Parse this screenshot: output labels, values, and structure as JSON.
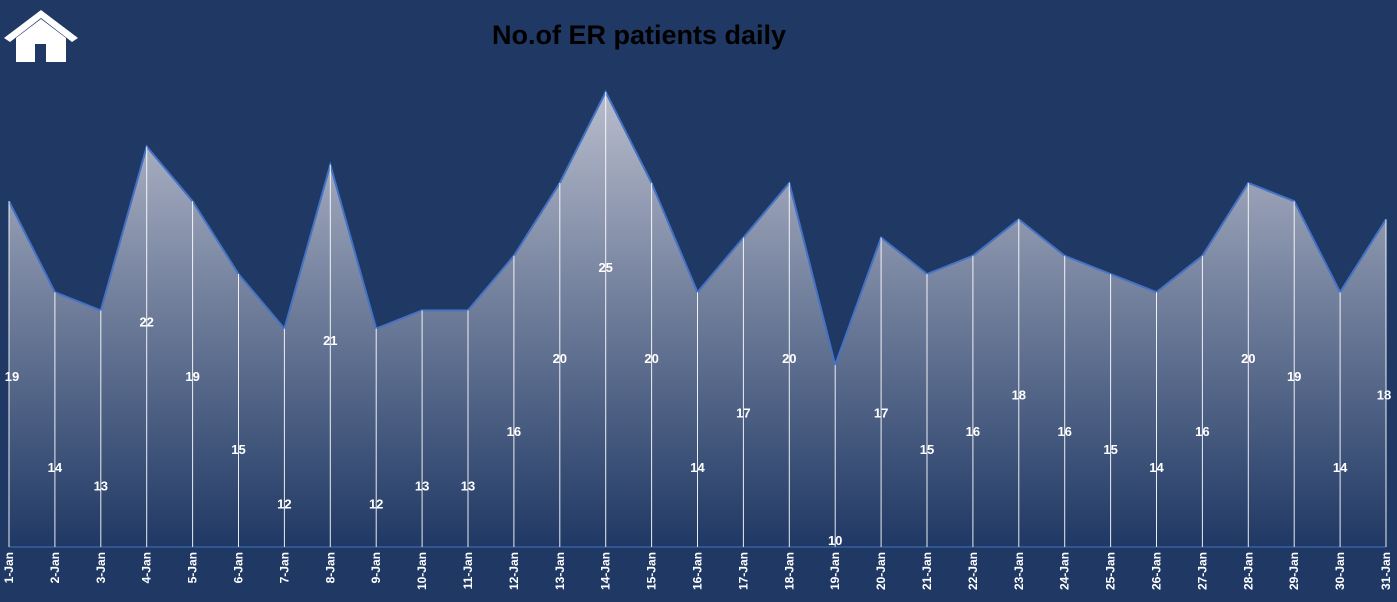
{
  "colors": {
    "background": "#1f3864",
    "area_top": "#b8bccc",
    "area_bottom": "#1f3864",
    "line": "#4472c4",
    "text": "#ffffff",
    "title": "#000000"
  },
  "home": {
    "icon": "house-icon"
  },
  "chart_data": {
    "type": "area",
    "title": "No.of ER patients daily",
    "xlabel": "",
    "ylabel": "",
    "grid": false,
    "legend": "none",
    "ylim": [
      0,
      25
    ],
    "categories": [
      "1-Jan",
      "2-Jan",
      "3-Jan",
      "4-Jan",
      "5-Jan",
      "6-Jan",
      "7-Jan",
      "8-Jan",
      "9-Jan",
      "10-Jan",
      "11-Jan",
      "12-Jan",
      "13-Jan",
      "14-Jan",
      "15-Jan",
      "16-Jan",
      "17-Jan",
      "18-Jan",
      "19-Jan",
      "20-Jan",
      "21-Jan",
      "22-Jan",
      "23-Jan",
      "24-Jan",
      "25-Jan",
      "26-Jan",
      "27-Jan",
      "28-Jan",
      "29-Jan",
      "30-Jan",
      "31-Jan"
    ],
    "values": [
      19,
      14,
      13,
      22,
      19,
      15,
      12,
      21,
      12,
      13,
      13,
      16,
      20,
      25,
      20,
      14,
      17,
      20,
      10,
      17,
      15,
      16,
      18,
      16,
      15,
      14,
      16,
      20,
      19,
      14,
      18
    ]
  }
}
